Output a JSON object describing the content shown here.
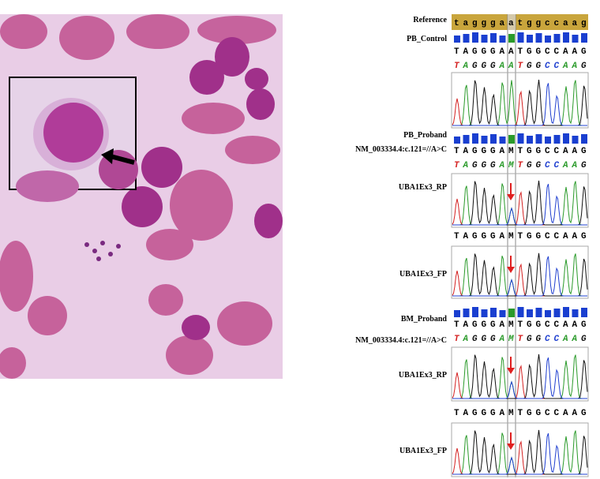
{
  "reference": {
    "label": "Reference",
    "sequence": "tagggaatggccaag"
  },
  "pb_control": {
    "label": "PB_Control",
    "basecalls": "TAGGGAATGGCCAAG",
    "colored_calls": "TAGGGAATGGCCAAG"
  },
  "pb_proband": {
    "label": "PB_Proband",
    "variant": "NM_003334.4:c.121=//A>C",
    "basecalls": "TAGGGAMTGGCCAAG",
    "colored_calls": "TAGGGAMTGGCCAAG",
    "reverse": {
      "label": "UBA1Ex3_RP"
    },
    "forward": {
      "label": "UBA1Ex3_FP",
      "basecalls": "TAGGGAMTGGCCAAG"
    }
  },
  "bm_proband": {
    "label": "BM_Proband",
    "variant": "NM_003334.4:c.121=//A>C",
    "basecalls": "TAGGGAMTGGCCAAG",
    "colored_calls": "TAGGGAMTGGCCAAG",
    "reverse": {
      "label": "UBA1Ex3_RP"
    },
    "forward": {
      "label": "UBA1Ex3_FP",
      "basecalls": "TAGGGAMTGGCCAAG"
    }
  }
}
